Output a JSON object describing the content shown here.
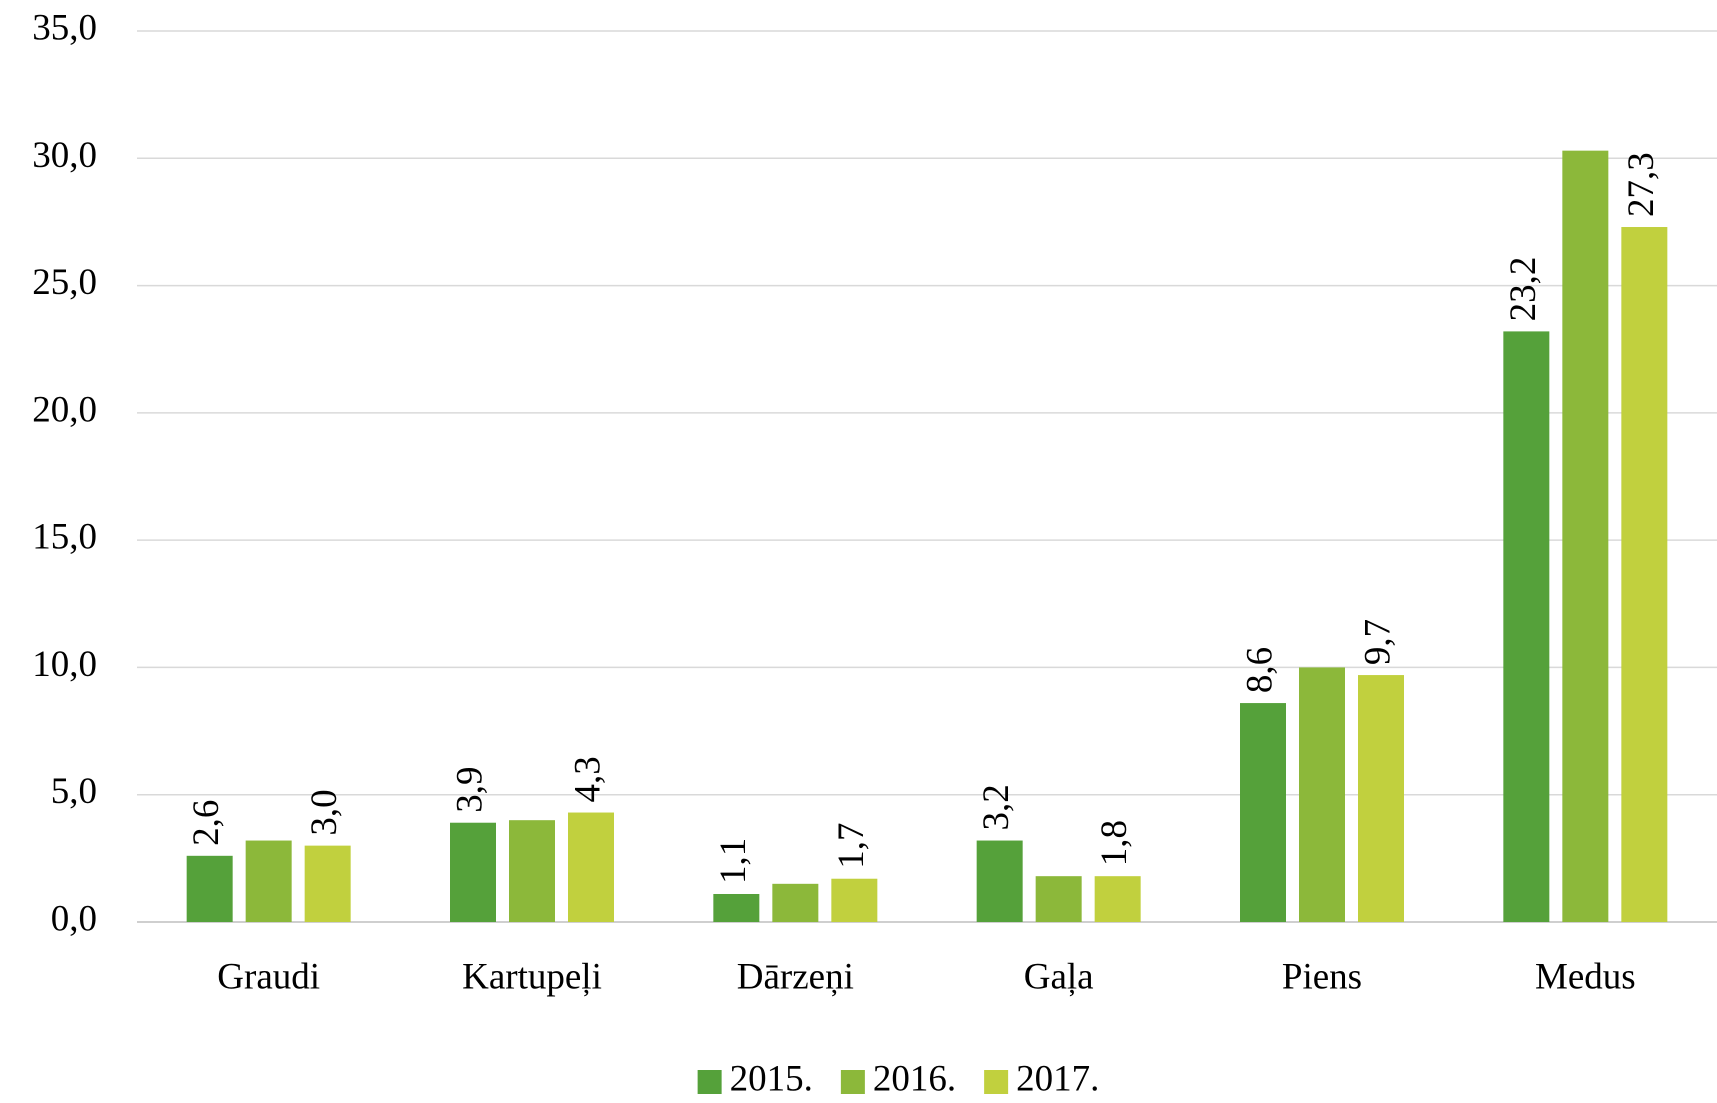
{
  "chart_data": {
    "type": "bar",
    "categories": [
      "Graudi",
      "Kartupeļi",
      "Dārzeņi",
      "Gaļa",
      "Piens",
      "Medus"
    ],
    "series": [
      {
        "name": "2015.",
        "color": "#55a13a",
        "values": [
          2.6,
          3.9,
          1.1,
          3.2,
          8.6,
          23.2
        ],
        "value_labels": [
          "2,6",
          "3,9",
          "1,1",
          "3,2",
          "8,6",
          "23,2"
        ]
      },
      {
        "name": "2016.",
        "color": "#8cb83a",
        "values": [
          3.2,
          4.0,
          1.5,
          1.8,
          10.0,
          30.3
        ]
      },
      {
        "name": "2017.",
        "color": "#c1d03e",
        "values": [
          3.0,
          4.3,
          1.7,
          1.8,
          9.7,
          27.3
        ],
        "value_labels": [
          "3,0",
          "4,3",
          "1,7",
          "1,8",
          "9,7",
          "27,3"
        ]
      }
    ],
    "ylim": [
      0,
      35
    ],
    "yticks": [
      {
        "value": 0,
        "label": "0,0"
      },
      {
        "value": 5,
        "label": "5,0"
      },
      {
        "value": 10,
        "label": "10,0"
      },
      {
        "value": 15,
        "label": "15,0"
      },
      {
        "value": 20,
        "label": "20,0"
      },
      {
        "value": 25,
        "label": "25,0"
      },
      {
        "value": 30,
        "label": "30,0"
      },
      {
        "value": 35,
        "label": "35,0"
      }
    ],
    "grid": true,
    "legend": "bottom"
  }
}
